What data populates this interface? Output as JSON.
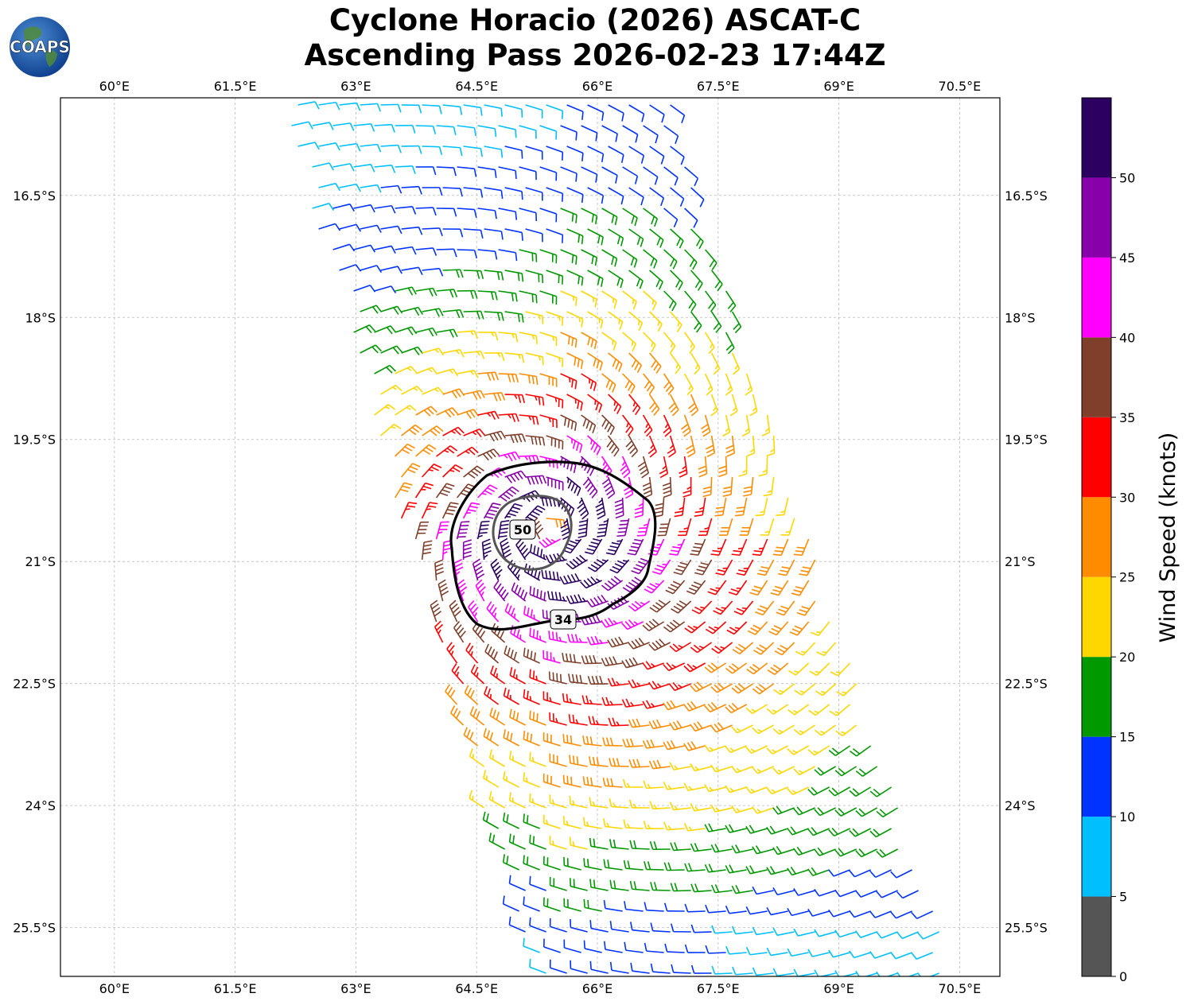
{
  "title": {
    "line1": "Cyclone Horacio (2026) ASCAT-C",
    "line2": "Ascending Pass 2026-02-23 17:44Z"
  },
  "logo": {
    "text": "COAPS",
    "icon": "globe-icon"
  },
  "map": {
    "lon_range": [
      59.33,
      71.0
    ],
    "lat_range": [
      -26.1,
      -15.3
    ],
    "lon_ticks": [
      "60°E",
      "61.5°E",
      "63°E",
      "64.5°E",
      "66°E",
      "67.5°E",
      "69°E",
      "70.5°E"
    ],
    "lat_ticks": [
      "16.5°S",
      "18°S",
      "19.5°S",
      "21°S",
      "22.5°S",
      "24°S",
      "25.5°S"
    ],
    "grid": true,
    "gridline_style": "dashed light gray",
    "storm_center": {
      "lon": 65.4,
      "lat": -20.6
    },
    "contours": [
      {
        "label": "34",
        "units": "knots",
        "color": "#000000"
      },
      {
        "label": "50",
        "units": "knots",
        "color": "#555555"
      }
    ],
    "swath": "ascending pass, tilted swath from NNW to SSE"
  },
  "colorbar": {
    "label": "Wind Speed (knots)",
    "ticks": [
      "0",
      "5",
      "10",
      "15",
      "20",
      "25",
      "30",
      "35",
      "40",
      "45",
      "50"
    ],
    "bins": [
      {
        "from": 0,
        "to": 5,
        "color": "#555555"
      },
      {
        "from": 5,
        "to": 10,
        "color": "#00bfff"
      },
      {
        "from": 10,
        "to": 15,
        "color": "#0033ff"
      },
      {
        "from": 15,
        "to": 20,
        "color": "#009900"
      },
      {
        "from": 20,
        "to": 25,
        "color": "#ffd700"
      },
      {
        "from": 25,
        "to": 30,
        "color": "#ff8c00"
      },
      {
        "from": 30,
        "to": 35,
        "color": "#ff0000"
      },
      {
        "from": 35,
        "to": 40,
        "color": "#7f3f2a"
      },
      {
        "from": 40,
        "to": 45,
        "color": "#ff00ff"
      },
      {
        "from": 45,
        "to": 50,
        "color": "#8800aa"
      },
      {
        "from": 50,
        "to": 55,
        "color": "#2b0060"
      }
    ]
  }
}
